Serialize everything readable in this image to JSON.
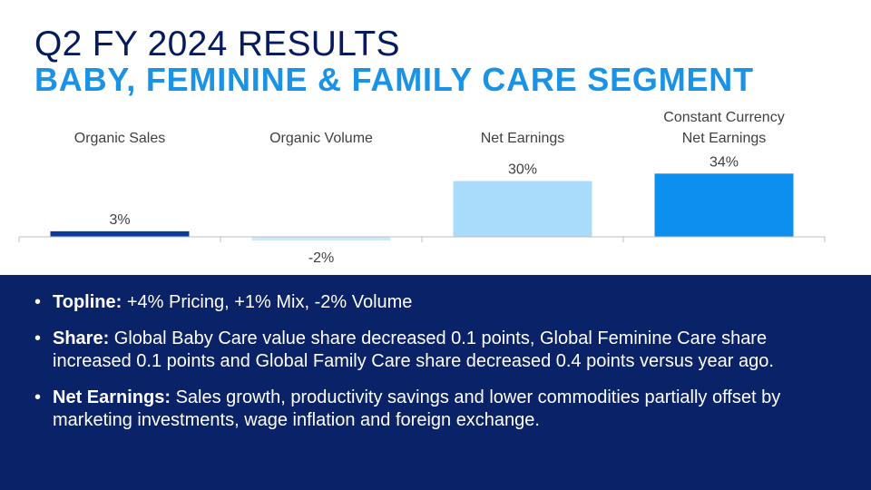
{
  "header": {
    "title": "Q2 FY 2024 RESULTS",
    "subtitle": "BABY, FEMININE & FAMILY CARE SEGMENT"
  },
  "colors": {
    "navy": "#0a2267",
    "title": "#061a5e",
    "accent": "#1a93e6"
  },
  "chart_data": {
    "type": "bar",
    "categories": [
      "Organic Sales",
      "Organic Volume",
      "Net Earnings",
      "Constant Currency\nNet Earnings"
    ],
    "values": [
      3,
      -2,
      30,
      34
    ],
    "value_labels": [
      "3%",
      "-2%",
      "30%",
      "34%"
    ],
    "bar_colors": [
      "#0a3a9c",
      "#cfe8f7",
      "#a9dcfb",
      "#0d8ff0"
    ],
    "unit": "%",
    "grid": false,
    "legend": "none"
  },
  "bullets": [
    {
      "label": "Topline:",
      "text": " +4% Pricing, +1% Mix, -2% Volume"
    },
    {
      "label": "Share:",
      "text": " Global Baby Care value share decreased 0.1 points, Global Feminine Care share increased 0.1 points and Global Family Care share decreased 0.4 points versus year ago."
    },
    {
      "label": "Net Earnings:",
      "text": " Sales growth, productivity savings and lower commodities partially offset by marketing investments, wage inflation and foreign exchange."
    }
  ]
}
